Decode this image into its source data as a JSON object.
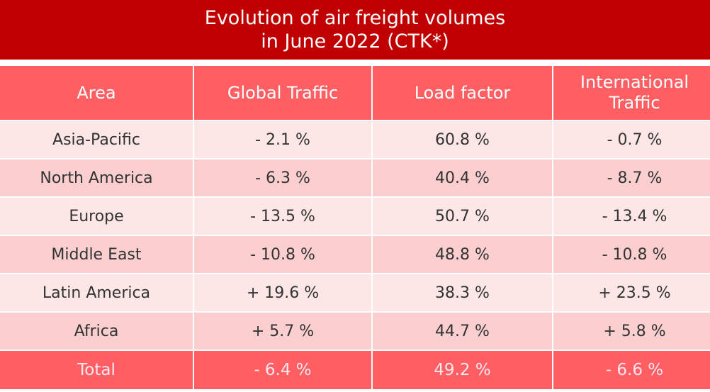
{
  "title": {
    "line1": "Evolution of air freight volumes",
    "line2": "in June 2022 (CTK*)"
  },
  "colors": {
    "title_bg": "#c00000",
    "header_bg": "#ff5f63",
    "row_light": "#fde6e6",
    "row_dark": "#fbcfcf",
    "total_bg": "#ff5f63"
  },
  "chart_data": {
    "type": "table",
    "title": "Evolution of air freight volumes in June 2022 (CTK*)",
    "columns": [
      "Area",
      "Global Traffic",
      "Load factor",
      "International Traffic"
    ],
    "rows": [
      [
        "Asia-Pacific",
        "- 2.1 %",
        "60.8 %",
        "- 0.7 %"
      ],
      [
        "North America",
        "- 6.3 %",
        "40.4 %",
        "- 8.7 %"
      ],
      [
        "Europe",
        "- 13.5 %",
        "50.7 %",
        "- 13.4 %"
      ],
      [
        "Middle East",
        "- 10.8 %",
        "48.8 %",
        "- 10.8 %"
      ],
      [
        "Latin America",
        "+ 19.6 %",
        "38.3 %",
        "+ 23.5 %"
      ],
      [
        "Africa",
        "+ 5.7 %",
        "44.7 %",
        "+ 5.8 %"
      ],
      [
        "Total",
        "- 6.4 %",
        "49.2 %",
        "- 6.6 %"
      ]
    ]
  }
}
